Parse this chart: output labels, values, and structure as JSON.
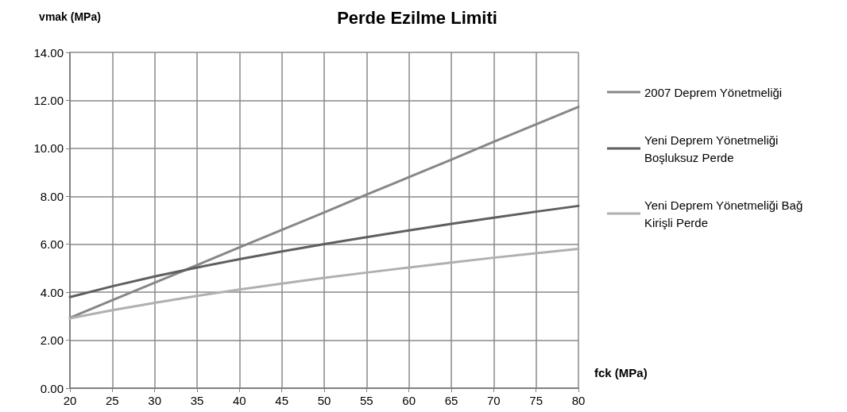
{
  "chart_data": {
    "type": "line",
    "title": "Perde Ezilme Limiti",
    "ylabel": "vmak (MPa)",
    "xlabel": "fck (MPa)",
    "x": [
      20,
      25,
      30,
      35,
      40,
      45,
      50,
      55,
      60,
      65,
      70,
      75,
      80
    ],
    "series": [
      {
        "name": "2007 Deprem Yönetmeliği",
        "color": "#878787",
        "values": [
          2.93,
          3.67,
          4.4,
          5.13,
          5.87,
          6.6,
          7.33,
          8.07,
          8.8,
          9.53,
          10.27,
          11.0,
          11.73
        ]
      },
      {
        "name": "Yeni Deprem Yönetmeliği Boşluksuz Perde",
        "color": "#5f5f5f",
        "values": [
          3.8,
          4.25,
          4.66,
          5.03,
          5.38,
          5.7,
          6.01,
          6.3,
          6.58,
          6.85,
          7.11,
          7.36,
          7.6
        ]
      },
      {
        "name": "Yeni Deprem Yönetmeliği Bağ Kirişli Perde",
        "color": "#b0b0b0",
        "values": [
          2.91,
          3.25,
          3.56,
          3.85,
          4.11,
          4.36,
          4.6,
          4.82,
          5.03,
          5.24,
          5.44,
          5.63,
          5.81
        ]
      }
    ],
    "xlim": [
      20,
      80
    ],
    "xticks": [
      20,
      25,
      30,
      35,
      40,
      45,
      50,
      55,
      60,
      65,
      70,
      75,
      80
    ],
    "ylim": [
      0,
      14
    ],
    "yticks": [
      {
        "value": 0,
        "label": "0.00"
      },
      {
        "value": 2,
        "label": "2.00"
      },
      {
        "value": 4,
        "label": "4.00"
      },
      {
        "value": 6,
        "label": "6.00"
      },
      {
        "value": 8,
        "label": "8.00"
      },
      {
        "value": 10,
        "label": "10.00"
      },
      {
        "value": 12,
        "label": "12.00"
      },
      {
        "value": 14,
        "label": "14.00"
      }
    ],
    "grid": true,
    "legend": "right",
    "marker": "none",
    "line_style": "solid"
  }
}
